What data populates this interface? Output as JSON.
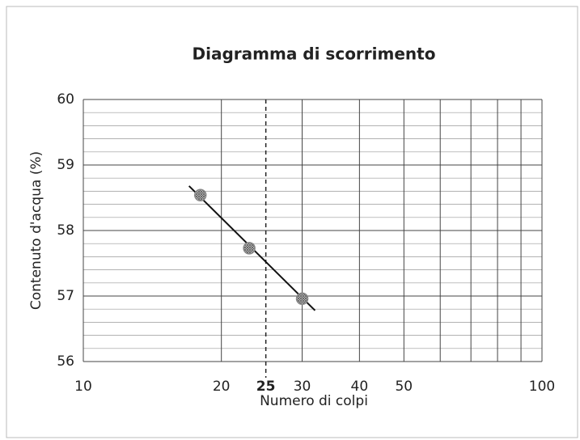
{
  "chart_data": {
    "type": "scatter",
    "title": "Diagramma di scorrimento",
    "xlabel": "Numero di colpi",
    "ylabel": "Contenuto d'acqua (%)",
    "xscale": "log",
    "xlim": [
      10,
      100
    ],
    "ylim": [
      56,
      60
    ],
    "xticks": [
      10,
      20,
      25,
      30,
      40,
      50,
      100
    ],
    "yticks": [
      56,
      57,
      58,
      59,
      60
    ],
    "xgrid_lines": [
      10,
      20,
      30,
      40,
      50,
      60,
      70,
      80,
      90,
      100
    ],
    "ygrid_lines": [
      56.2,
      56.4,
      56.6,
      56.8,
      57.2,
      57.4,
      57.6,
      57.8,
      58.2,
      58.4,
      58.6,
      58.8,
      59.2,
      59.4,
      59.6,
      59.8
    ],
    "reference_x": 25,
    "series": [
      {
        "x": [
          18,
          23,
          30
        ],
        "values": [
          58.54,
          57.73,
          56.96
        ],
        "color": "#888888"
      }
    ],
    "trendline": {
      "x": [
        17,
        32
      ],
      "values": [
        58.68,
        56.78
      ],
      "color": "#111111"
    }
  }
}
